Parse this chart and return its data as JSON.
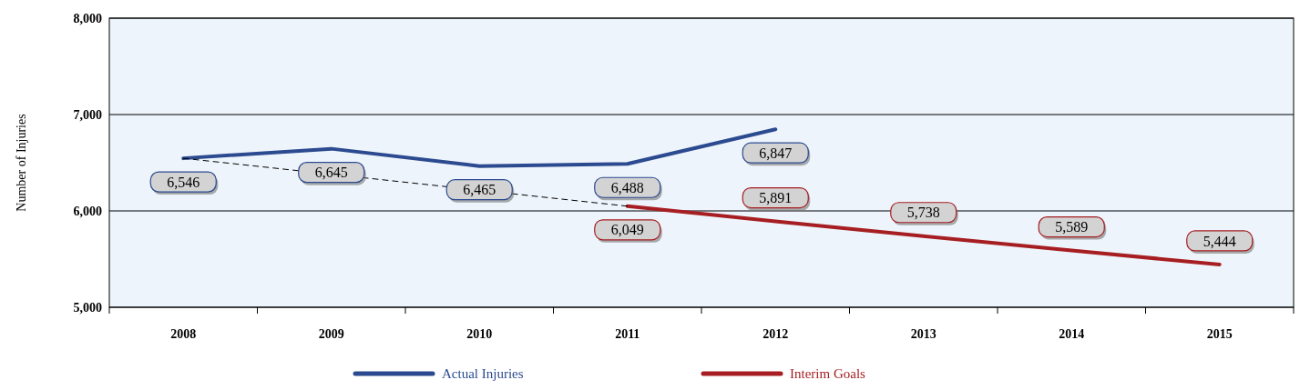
{
  "chart_data": {
    "type": "line",
    "ylabel": "Number of Injuries",
    "categories": [
      "2008",
      "2009",
      "2010",
      "2011",
      "2012",
      "2013",
      "2014",
      "2015"
    ],
    "ylim": [
      5000,
      8000
    ],
    "yticks": [
      {
        "value": 5000,
        "label": "5,000"
      },
      {
        "value": 6000,
        "label": "6,000"
      },
      {
        "value": 7000,
        "label": "7,000"
      },
      {
        "value": 8000,
        "label": "8,000"
      }
    ],
    "grid": "y",
    "legend": "bottom",
    "marker": "none",
    "series": [
      {
        "name": "Actual Injuries",
        "color": "#2b4a8f",
        "values": [
          6546,
          6645,
          6465,
          6488,
          6847,
          null,
          null,
          null
        ],
        "value_labels": [
          "6,546",
          "6,645",
          "6,465",
          "6,488",
          "6,847",
          null,
          null,
          null
        ]
      },
      {
        "name": "Interim Goals",
        "color": "#a61e22",
        "values": [
          null,
          null,
          null,
          6049,
          5891,
          5738,
          5589,
          5444
        ],
        "value_labels": [
          null,
          null,
          null,
          "6,049",
          "5,891",
          "5,738",
          "5,589",
          "5,444"
        ]
      },
      {
        "type": "line",
        "color": "#000000",
        "line_style": "dashed",
        "values": [
          6546,
          null,
          null,
          6049,
          null,
          null,
          null,
          null
        ]
      }
    ]
  }
}
